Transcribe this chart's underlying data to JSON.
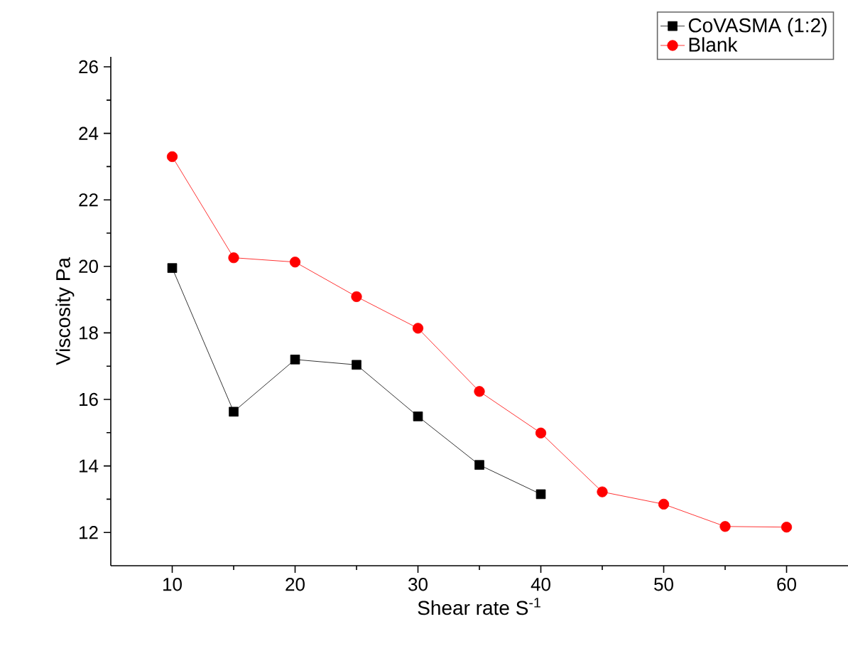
{
  "chart_data": {
    "type": "line",
    "xlabel": "Shear rate S$^{-1}$",
    "ylabel": "Viscosity Pa",
    "x": [
      10,
      15,
      20,
      25,
      30,
      35,
      40,
      45,
      50,
      55,
      60
    ],
    "series": [
      {
        "name": "CoVASMA (1:2)",
        "color": "#000000",
        "marker": "square",
        "values": [
          19.95,
          15.63,
          17.2,
          17.04,
          15.49,
          14.03,
          13.15,
          null,
          null,
          null,
          null
        ]
      },
      {
        "name": "Blank",
        "color": "#ff0000",
        "marker": "circle",
        "values": [
          23.3,
          20.26,
          20.13,
          19.09,
          18.14,
          16.24,
          14.99,
          13.22,
          12.85,
          12.18,
          12.16
        ]
      }
    ],
    "xlim": [
      5,
      65
    ],
    "ylim": [
      11,
      26.3
    ],
    "xticks": [
      10,
      20,
      30,
      40,
      50,
      60
    ],
    "yticks": [
      12,
      14,
      16,
      18,
      20,
      22,
      24,
      26
    ],
    "legend": "top right",
    "line_style": "solid",
    "grid": false
  }
}
